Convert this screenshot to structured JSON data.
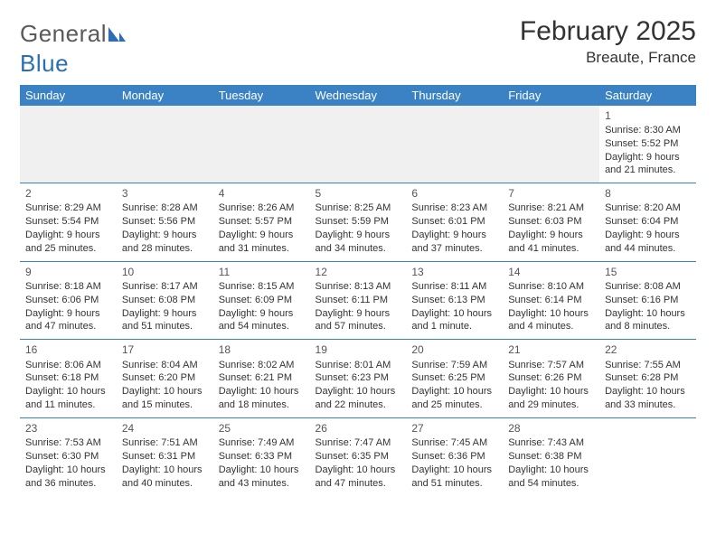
{
  "logo": {
    "text_part1": "General",
    "text_part2": "Blue",
    "icon_color": "#2a6fb5"
  },
  "title": "February 2025",
  "location": "Breaute, France",
  "header_bg": "#3b82c4",
  "border_color": "#3b82c4",
  "empty_bg": "#f0f0f0",
  "weekdays": [
    "Sunday",
    "Monday",
    "Tuesday",
    "Wednesday",
    "Thursday",
    "Friday",
    "Saturday"
  ],
  "weeks": [
    [
      null,
      null,
      null,
      null,
      null,
      null,
      {
        "n": "1",
        "sr": "8:30 AM",
        "ss": "5:52 PM",
        "dl": "9 hours and 21 minutes."
      }
    ],
    [
      {
        "n": "2",
        "sr": "8:29 AM",
        "ss": "5:54 PM",
        "dl": "9 hours and 25 minutes."
      },
      {
        "n": "3",
        "sr": "8:28 AM",
        "ss": "5:56 PM",
        "dl": "9 hours and 28 minutes."
      },
      {
        "n": "4",
        "sr": "8:26 AM",
        "ss": "5:57 PM",
        "dl": "9 hours and 31 minutes."
      },
      {
        "n": "5",
        "sr": "8:25 AM",
        "ss": "5:59 PM",
        "dl": "9 hours and 34 minutes."
      },
      {
        "n": "6",
        "sr": "8:23 AM",
        "ss": "6:01 PM",
        "dl": "9 hours and 37 minutes."
      },
      {
        "n": "7",
        "sr": "8:21 AM",
        "ss": "6:03 PM",
        "dl": "9 hours and 41 minutes."
      },
      {
        "n": "8",
        "sr": "8:20 AM",
        "ss": "6:04 PM",
        "dl": "9 hours and 44 minutes."
      }
    ],
    [
      {
        "n": "9",
        "sr": "8:18 AM",
        "ss": "6:06 PM",
        "dl": "9 hours and 47 minutes."
      },
      {
        "n": "10",
        "sr": "8:17 AM",
        "ss": "6:08 PM",
        "dl": "9 hours and 51 minutes."
      },
      {
        "n": "11",
        "sr": "8:15 AM",
        "ss": "6:09 PM",
        "dl": "9 hours and 54 minutes."
      },
      {
        "n": "12",
        "sr": "8:13 AM",
        "ss": "6:11 PM",
        "dl": "9 hours and 57 minutes."
      },
      {
        "n": "13",
        "sr": "8:11 AM",
        "ss": "6:13 PM",
        "dl": "10 hours and 1 minute."
      },
      {
        "n": "14",
        "sr": "8:10 AM",
        "ss": "6:14 PM",
        "dl": "10 hours and 4 minutes."
      },
      {
        "n": "15",
        "sr": "8:08 AM",
        "ss": "6:16 PM",
        "dl": "10 hours and 8 minutes."
      }
    ],
    [
      {
        "n": "16",
        "sr": "8:06 AM",
        "ss": "6:18 PM",
        "dl": "10 hours and 11 minutes."
      },
      {
        "n": "17",
        "sr": "8:04 AM",
        "ss": "6:20 PM",
        "dl": "10 hours and 15 minutes."
      },
      {
        "n": "18",
        "sr": "8:02 AM",
        "ss": "6:21 PM",
        "dl": "10 hours and 18 minutes."
      },
      {
        "n": "19",
        "sr": "8:01 AM",
        "ss": "6:23 PM",
        "dl": "10 hours and 22 minutes."
      },
      {
        "n": "20",
        "sr": "7:59 AM",
        "ss": "6:25 PM",
        "dl": "10 hours and 25 minutes."
      },
      {
        "n": "21",
        "sr": "7:57 AM",
        "ss": "6:26 PM",
        "dl": "10 hours and 29 minutes."
      },
      {
        "n": "22",
        "sr": "7:55 AM",
        "ss": "6:28 PM",
        "dl": "10 hours and 33 minutes."
      }
    ],
    [
      {
        "n": "23",
        "sr": "7:53 AM",
        "ss": "6:30 PM",
        "dl": "10 hours and 36 minutes."
      },
      {
        "n": "24",
        "sr": "7:51 AM",
        "ss": "6:31 PM",
        "dl": "10 hours and 40 minutes."
      },
      {
        "n": "25",
        "sr": "7:49 AM",
        "ss": "6:33 PM",
        "dl": "10 hours and 43 minutes."
      },
      {
        "n": "26",
        "sr": "7:47 AM",
        "ss": "6:35 PM",
        "dl": "10 hours and 47 minutes."
      },
      {
        "n": "27",
        "sr": "7:45 AM",
        "ss": "6:36 PM",
        "dl": "10 hours and 51 minutes."
      },
      {
        "n": "28",
        "sr": "7:43 AM",
        "ss": "6:38 PM",
        "dl": "10 hours and 54 minutes."
      },
      null
    ]
  ],
  "labels": {
    "sunrise": "Sunrise: ",
    "sunset": "Sunset: ",
    "daylight": "Daylight: "
  }
}
